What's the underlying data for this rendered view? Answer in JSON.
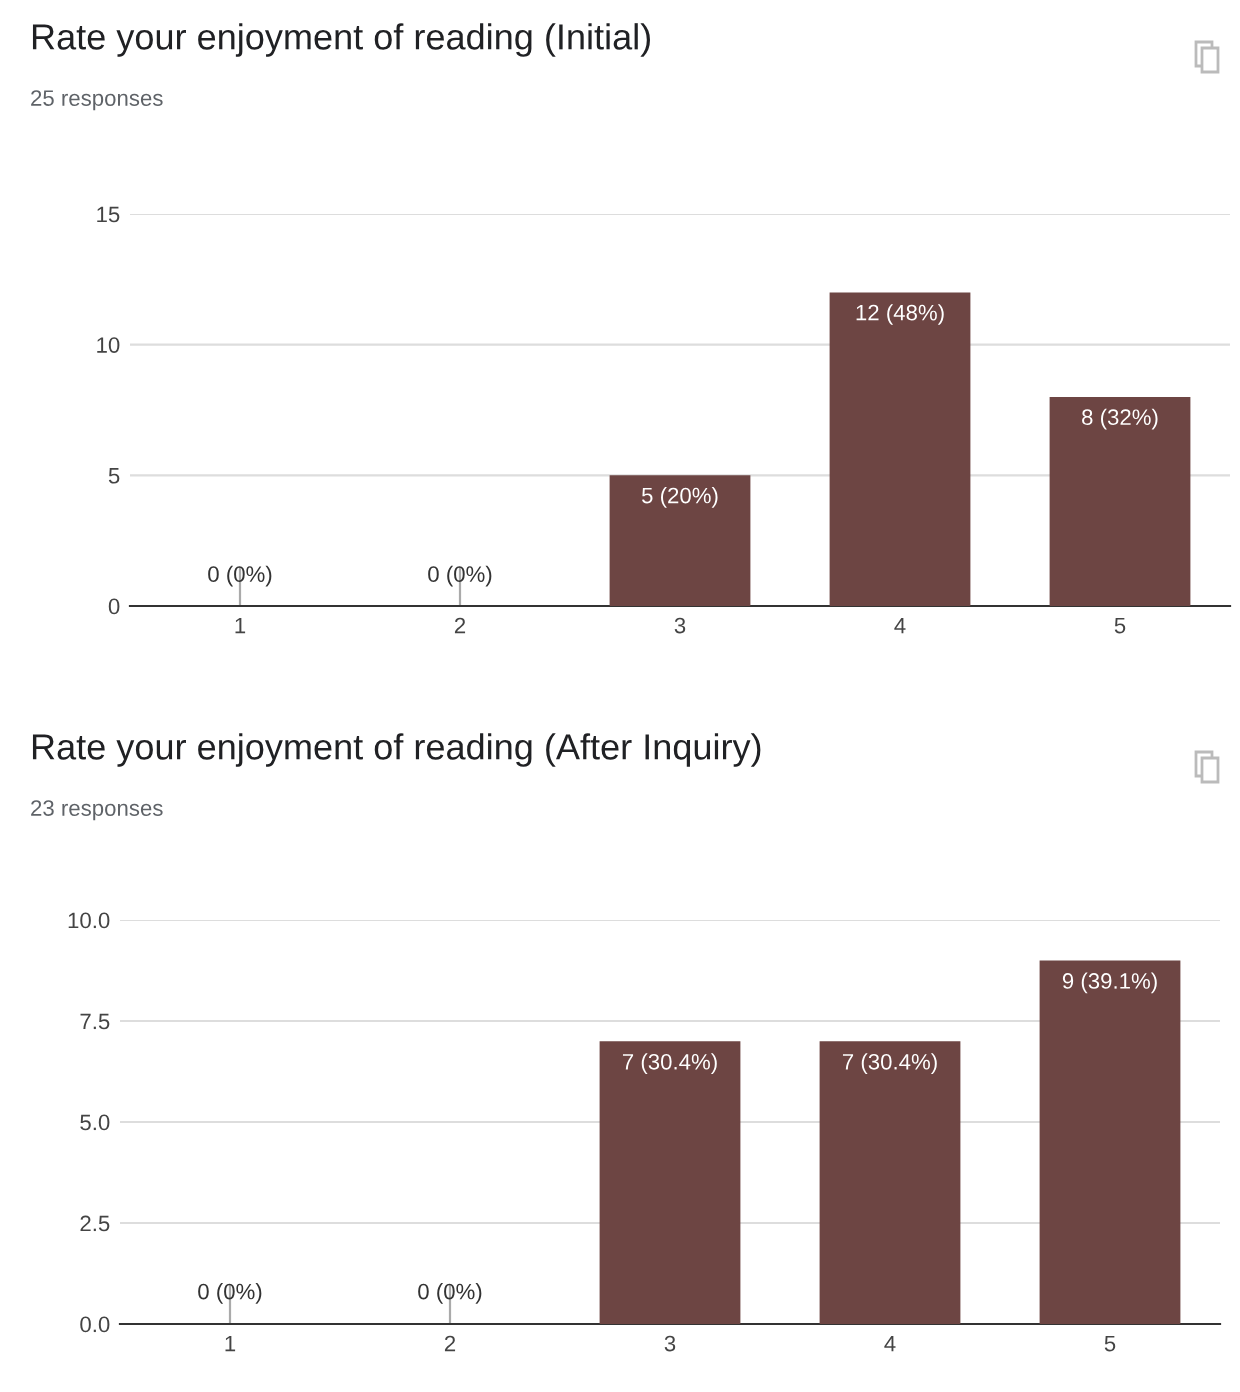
{
  "chart_data": [
    {
      "type": "bar",
      "title": "Rate your enjoyment of reading (Initial)",
      "subtitle": "25 responses",
      "categories": [
        "1",
        "2",
        "3",
        "4",
        "5"
      ],
      "values": [
        0,
        0,
        5,
        12,
        8
      ],
      "color": "#6d4543",
      "value_labels": [
        "0 (0%)",
        "0 (0%)",
        "5 (20%)",
        "12 (48%)",
        "8 (32%)"
      ],
      "ylim": [
        0,
        15
      ],
      "yticks": [
        0,
        5,
        10,
        15
      ],
      "grid": "y",
      "legend": false
    },
    {
      "type": "bar",
      "title": "Rate your enjoyment of reading (After Inquiry)",
      "subtitle": "23 responses",
      "categories": [
        "1",
        "2",
        "3",
        "4",
        "5"
      ],
      "values": [
        0,
        0,
        7,
        7,
        9
      ],
      "color": "#6d4543",
      "value_labels": [
        "0 (0%)",
        "0 (0%)",
        "7 (30.4%)",
        "7 (30.4%)",
        "9 (39.1%)"
      ],
      "ylim": [
        0,
        10
      ],
      "yticks": [
        {
          "value": 0,
          "label": "0.0"
        },
        {
          "value": 2.5,
          "label": "2.5"
        },
        {
          "value": 5,
          "label": "5.0"
        },
        {
          "value": 7.5,
          "label": "7.5"
        },
        {
          "value": 10,
          "label": "10.0"
        }
      ],
      "grid": "y",
      "legend": false
    }
  ]
}
